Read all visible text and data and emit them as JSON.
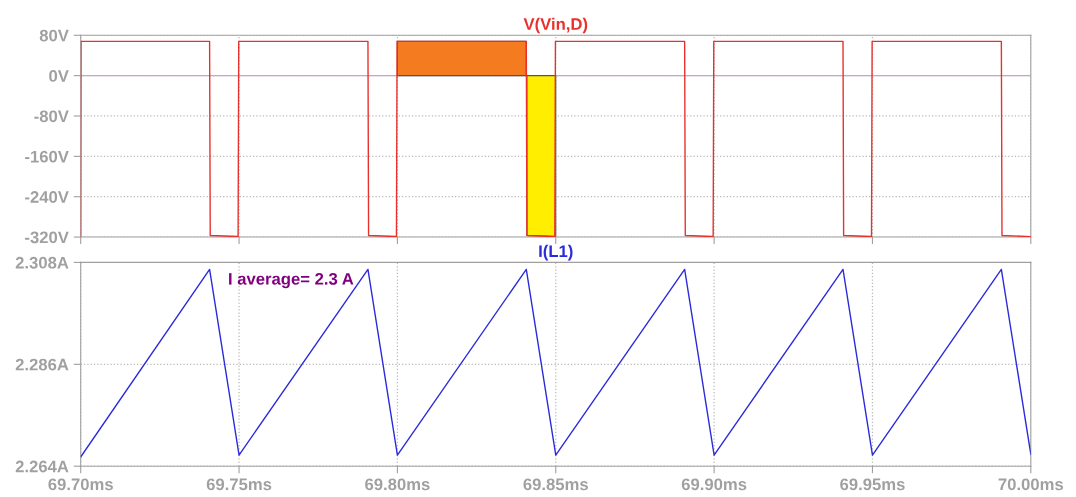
{
  "chart_data": [
    {
      "type": "line",
      "tick_labels": "y",
      "grid": true,
      "ylim": [
        -320,
        80
      ],
      "yticks": [
        {
          "value": 80,
          "label": "80V"
        },
        {
          "value": 0,
          "label": "0V"
        },
        {
          "value": -80,
          "label": "-80V"
        },
        {
          "value": -160,
          "label": "-160V"
        },
        {
          "value": -240,
          "label": "-240V"
        },
        {
          "value": -320,
          "label": "-320V"
        }
      ],
      "xlim": [
        69.7,
        70.0
      ],
      "xticks": [
        {
          "value": 69.7,
          "label": null
        },
        {
          "value": 69.75,
          "label": null
        },
        {
          "value": 69.8,
          "label": null
        },
        {
          "value": 69.85,
          "label": null
        },
        {
          "value": 69.9,
          "label": null
        },
        {
          "value": 69.95,
          "label": null
        },
        {
          "value": 70.0,
          "label": null
        }
      ],
      "ref_lines": [
        {
          "axis": "y",
          "value": 0,
          "color": "#c8a0d0"
        }
      ],
      "series": [
        {
          "type": "area",
          "color": "#f47b20",
          "x": [
            69.8,
            69.8407
          ],
          "values": [
            68,
            68
          ]
        },
        {
          "type": "area",
          "color": "#ffee00",
          "x": [
            69.8409,
            69.85
          ],
          "values": [
            -317,
            -319
          ]
        },
        {
          "name": "V(Vin,D)",
          "color": "#e8302c",
          "x": [
            69.7,
            69.7001,
            69.7407,
            69.7409,
            69.7497,
            69.7499,
            69.7907,
            69.7909,
            69.7997,
            69.7999,
            69.8407,
            69.8409,
            69.8497,
            69.8499,
            69.8907,
            69.8909,
            69.8997,
            69.8999,
            69.9407,
            69.9409,
            69.9497,
            69.9499,
            69.9907,
            69.9909,
            70.0
          ],
          "values": [
            -318,
            68,
            68,
            -317,
            -319,
            68,
            68,
            -317,
            -319,
            68,
            68,
            -317,
            -319,
            68,
            68,
            -317,
            -319,
            68,
            68,
            -317,
            -319,
            68,
            68,
            -317,
            -319
          ]
        }
      ]
    },
    {
      "type": "line",
      "grid": true,
      "ylim": [
        2.264,
        2.308
      ],
      "yticks": [
        {
          "value": 2.308,
          "label": "2.308A"
        },
        {
          "value": 2.286,
          "label": "2.286A"
        },
        {
          "value": 2.264,
          "label": "2.264A"
        }
      ],
      "xlim": [
        69.7,
        70.0
      ],
      "xticks": [
        {
          "value": 69.7,
          "label": "69.70ms"
        },
        {
          "value": 69.75,
          "label": "69.75ms"
        },
        {
          "value": 69.8,
          "label": "69.80ms"
        },
        {
          "value": 69.85,
          "label": "69.85ms"
        },
        {
          "value": 69.9,
          "label": "69.90ms"
        },
        {
          "value": 69.95,
          "label": "69.95ms"
        },
        {
          "value": 70.0,
          "label": "70.00ms"
        }
      ],
      "annotations": [
        "I average= 2.3 A"
      ],
      "series": [
        {
          "name": "I(L1)",
          "color": "#2b2bdc",
          "x": [
            69.7,
            69.7407,
            69.75,
            69.7907,
            69.8,
            69.8407,
            69.85,
            69.8907,
            69.9,
            69.9407,
            69.95,
            69.9907,
            70.0
          ],
          "values": [
            2.266,
            2.3065,
            2.2664,
            2.3065,
            2.2664,
            2.3065,
            2.2664,
            2.3065,
            2.2664,
            2.3065,
            2.2664,
            2.3065,
            2.2666
          ]
        }
      ]
    }
  ]
}
